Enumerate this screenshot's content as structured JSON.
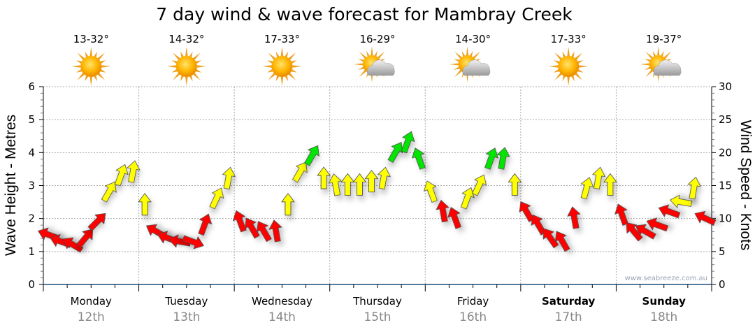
{
  "chart_data": {
    "type": "scatter",
    "title": "7 day wind & wave forecast for Mambray Creek",
    "ylabel_left": "Wave Height - Metres",
    "ylabel_right": "Wind Speed - Knots",
    "ylim_left": [
      0,
      6
    ],
    "ylim_right": [
      0,
      30
    ],
    "yticks_left": [
      "0",
      "1",
      "2",
      "3",
      "4",
      "5",
      "6"
    ],
    "yticks_right": [
      "0",
      "5",
      "10",
      "15",
      "20",
      "25",
      "30"
    ],
    "grid": true,
    "days": [
      {
        "name": "Monday",
        "date": "12th",
        "temp": "13-32°",
        "icon": "sunny-icon",
        "weekend": false
      },
      {
        "name": "Tuesday",
        "date": "13th",
        "temp": "14-32°",
        "icon": "sunny-icon",
        "weekend": false
      },
      {
        "name": "Wednesday",
        "date": "14th",
        "temp": "17-33°",
        "icon": "sunny-icon",
        "weekend": false
      },
      {
        "name": "Thursday",
        "date": "15th",
        "temp": "16-29°",
        "icon": "partly-cloudy-icon",
        "weekend": false
      },
      {
        "name": "Friday",
        "date": "16th",
        "temp": "14-30°",
        "icon": "partly-cloudy-icon",
        "weekend": false
      },
      {
        "name": "Saturday",
        "date": "17th",
        "temp": "17-33°",
        "icon": "sunny-icon",
        "weekend": true
      },
      {
        "name": "Sunday",
        "date": "18th",
        "temp": "19-37°",
        "icon": "partly-cloudy-icon",
        "weekend": true
      }
    ],
    "wind_series": {
      "name": "Wind Speed (knots), 3-hourly",
      "speed": [
        7.5,
        6.5,
        6,
        7,
        9.5,
        14,
        16.5,
        17,
        12,
        8,
        7,
        6.5,
        6.5,
        9,
        13,
        16,
        9.5,
        8.5,
        8,
        8,
        12,
        17,
        19.5,
        16,
        15,
        15,
        15,
        15.5,
        16,
        20,
        21.5,
        19,
        14,
        11,
        10,
        13,
        15,
        19,
        19,
        15,
        11,
        9,
        7,
        6.5,
        10,
        14.5,
        16,
        15,
        10.5,
        8,
        8,
        9,
        11,
        12.5,
        14.5,
        10
      ],
      "direction_deg": [
        -70,
        -70,
        -60,
        40,
        45,
        30,
        20,
        10,
        0,
        -60,
        -70,
        -80,
        110,
        20,
        25,
        10,
        -20,
        -30,
        -30,
        -10,
        0,
        30,
        30,
        0,
        -10,
        0,
        0,
        0,
        10,
        30,
        20,
        -20,
        -20,
        -10,
        -20,
        20,
        25,
        20,
        10,
        0,
        -30,
        -30,
        -35,
        -30,
        -10,
        15,
        10,
        0,
        -20,
        -40,
        -60,
        -70,
        -70,
        -80,
        10,
        -65
      ]
    },
    "color_thresholds": {
      "low": "#ff0000",
      "mid": "#ffff00",
      "high": "#00e600",
      "mid_from": 12,
      "high_from": 18
    },
    "watermark": "www.seabreeze.com.au"
  }
}
